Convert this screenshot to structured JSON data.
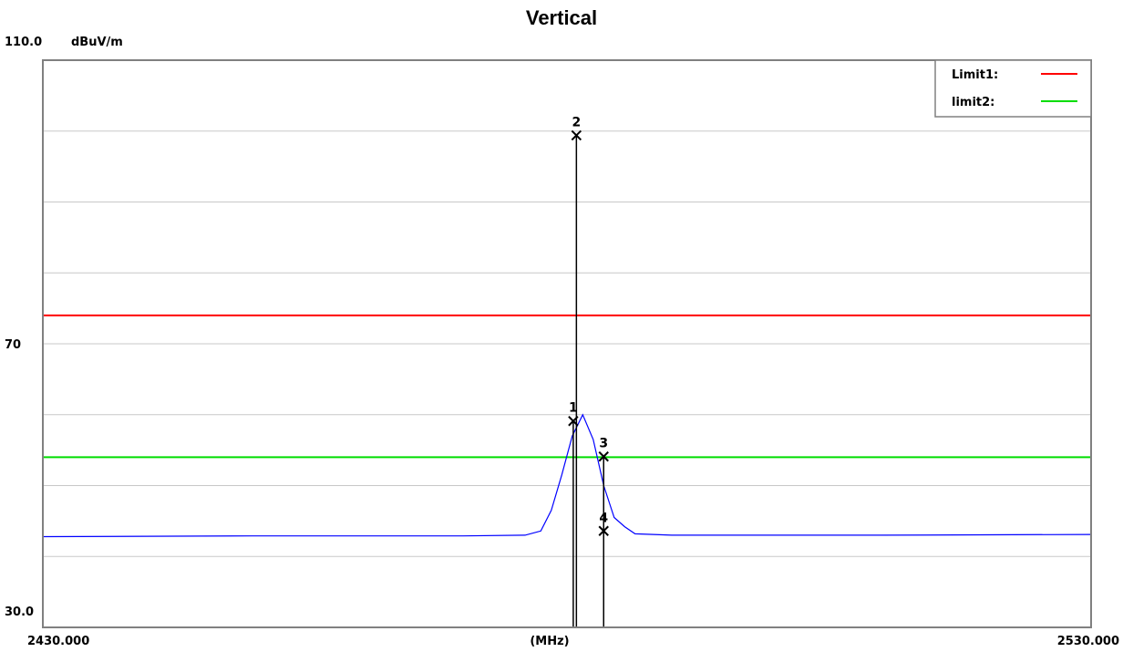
{
  "chart_data": {
    "type": "line",
    "title": "Vertical",
    "ylabel": "dBuV/m",
    "xlabel": "(MHz)",
    "xlim": [
      2430.0,
      2530.0
    ],
    "ylim": [
      30.0,
      110.0
    ],
    "x_tick_labels": {
      "left": "2430.000",
      "center": "(MHz)",
      "right": "2530.000"
    },
    "y_tick_labels": [
      {
        "value": 110,
        "label": "110.0"
      },
      {
        "value": 70,
        "label": "70"
      },
      {
        "value": 30,
        "label": "30.0"
      }
    ],
    "grid": true,
    "legend": {
      "position": "top-right",
      "entries": [
        {
          "name": "Limit1:",
          "color": "#ff0000"
        },
        {
          "name": "limit2:",
          "color": "#00dd00"
        }
      ]
    },
    "limits": [
      {
        "name": "Limit1:",
        "value": 74.0,
        "color": "#ff0000"
      },
      {
        "name": "limit2:",
        "value": 54.0,
        "color": "#00dd00"
      }
    ],
    "series": [
      {
        "color": "#0000ff",
        "x": [
          2430.0,
          2450.0,
          2470.0,
          2476.0,
          2477.5,
          2478.5,
          2479.5,
          2480.5,
          2481.5,
          2482.5,
          2483.5,
          2484.5,
          2485.5,
          2486.5,
          2490.0,
          2510.0,
          2530.0
        ],
        "y": [
          42.8,
          42.9,
          42.9,
          43.0,
          43.6,
          46.5,
          51.5,
          57.0,
          60.0,
          56.5,
          50.0,
          45.5,
          44.2,
          43.2,
          43.0,
          43.0,
          43.1
        ]
      }
    ],
    "markers": [
      {
        "label": "1",
        "x": 2480.6,
        "y": 59.1
      },
      {
        "label": "2",
        "x": 2480.9,
        "y": 99.4
      },
      {
        "label": "3",
        "x": 2483.5,
        "y": 54.1
      },
      {
        "label": "4",
        "x": 2483.5,
        "y": 43.6
      }
    ]
  }
}
